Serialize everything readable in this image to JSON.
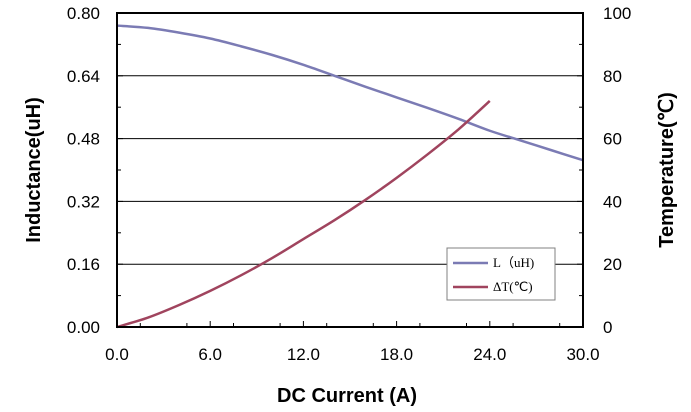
{
  "chart_data": {
    "type": "line",
    "xlabel": "DC Current (A)",
    "ylabel_left": "Inductance(uH)",
    "ylabel_right": "Temperature(℃)",
    "xlim": [
      0,
      30
    ],
    "ylim_left": [
      0,
      0.8
    ],
    "ylim_right": [
      0,
      100
    ],
    "x_ticks": [
      "0.0",
      "6.0",
      "12.0",
      "18.0",
      "24.0",
      "30.0"
    ],
    "y_left_ticks": [
      "0.00",
      "0.16",
      "0.32",
      "0.48",
      "0.64",
      "0.80"
    ],
    "y_right_ticks": [
      "0",
      "20",
      "40",
      "60",
      "80",
      "100"
    ],
    "grid": "horizontal",
    "legend_position": "bottom-right",
    "series": [
      {
        "name": "L（uH)",
        "axis": "left",
        "color": "#7b7bb4",
        "x": [
          0,
          2,
          4,
          6,
          8,
          10,
          12,
          14,
          16,
          18,
          20,
          22,
          24,
          26,
          28,
          30
        ],
        "y": [
          0.768,
          0.762,
          0.75,
          0.735,
          0.715,
          0.693,
          0.668,
          0.64,
          0.612,
          0.585,
          0.558,
          0.53,
          0.5,
          0.475,
          0.45,
          0.425
        ]
      },
      {
        "name": "ΔT(℃)",
        "axis": "right",
        "color": "#a0445e",
        "x": [
          0,
          2,
          4,
          6,
          8,
          10,
          12,
          14,
          16,
          18,
          20,
          22,
          24
        ],
        "y": [
          0,
          3,
          7,
          11.5,
          16.5,
          22,
          28,
          34,
          40.5,
          47.5,
          55,
          63,
          72
        ]
      }
    ]
  }
}
